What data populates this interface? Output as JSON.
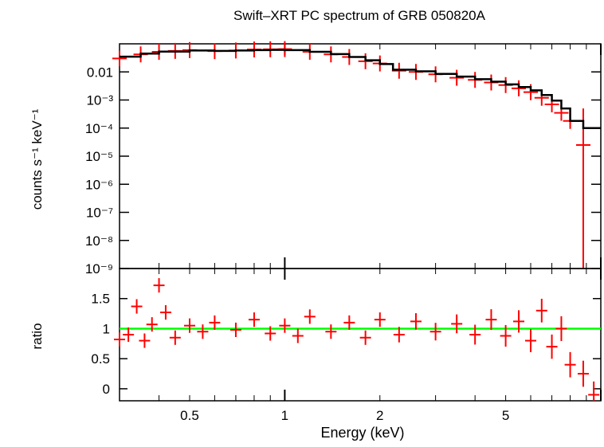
{
  "chart_data": [
    {
      "type": "scatter",
      "panel": "spectrum",
      "title": "Swift–XRT PC spectrum of GRB 050820A",
      "ylabel": "counts s⁻¹ keV⁻¹",
      "xlabel": "",
      "xscale": "log",
      "yscale": "log",
      "xlim": [
        0.3,
        10
      ],
      "ylim": [
        1e-09,
        0.1
      ],
      "y_tick_labels": [
        "0.01",
        "10⁻³",
        "10⁻⁴",
        "10⁻⁵",
        "10⁻⁶",
        "10⁻⁷",
        "10⁻⁸",
        "10⁻⁹"
      ],
      "y_tick_values": [
        0.01,
        0.001,
        0.0001,
        1e-05,
        1e-06,
        1e-07,
        1e-08,
        1e-09
      ],
      "series": [
        {
          "style": "data points with error bars",
          "color": "#ff0000",
          "points": [
            {
              "x": 0.3,
              "y": 0.03
            },
            {
              "x": 0.35,
              "y": 0.042
            },
            {
              "x": 0.4,
              "y": 0.052
            },
            {
              "x": 0.45,
              "y": 0.056
            },
            {
              "x": 0.5,
              "y": 0.06
            },
            {
              "x": 0.6,
              "y": 0.055
            },
            {
              "x": 0.7,
              "y": 0.058
            },
            {
              "x": 0.8,
              "y": 0.063
            },
            {
              "x": 0.9,
              "y": 0.064
            },
            {
              "x": 1.0,
              "y": 0.065
            },
            {
              "x": 1.2,
              "y": 0.052
            },
            {
              "x": 1.4,
              "y": 0.042
            },
            {
              "x": 1.6,
              "y": 0.034
            },
            {
              "x": 1.8,
              "y": 0.024
            },
            {
              "x": 2.0,
              "y": 0.02
            },
            {
              "x": 2.3,
              "y": 0.011
            },
            {
              "x": 2.6,
              "y": 0.01
            },
            {
              "x": 3.0,
              "y": 0.0082
            },
            {
              "x": 3.5,
              "y": 0.0062
            },
            {
              "x": 4.0,
              "y": 0.0052
            },
            {
              "x": 4.5,
              "y": 0.0042
            },
            {
              "x": 5.0,
              "y": 0.0034
            },
            {
              "x": 5.5,
              "y": 0.0026
            },
            {
              "x": 6.0,
              "y": 0.0019
            },
            {
              "x": 6.5,
              "y": 0.0012
            },
            {
              "x": 7.0,
              "y": 0.0007
            },
            {
              "x": 7.5,
              "y": 0.00035
            },
            {
              "x": 8.0,
              "y": 0.00018
            },
            {
              "x": 8.8,
              "y": 2.5e-05
            }
          ]
        },
        {
          "style": "model histogram",
          "color": "#000000",
          "points": [
            {
              "x": 0.3,
              "y": 0.035
            },
            {
              "x": 0.35,
              "y": 0.045
            },
            {
              "x": 0.4,
              "y": 0.053
            },
            {
              "x": 0.5,
              "y": 0.058
            },
            {
              "x": 0.6,
              "y": 0.056
            },
            {
              "x": 0.7,
              "y": 0.058
            },
            {
              "x": 0.8,
              "y": 0.06
            },
            {
              "x": 0.9,
              "y": 0.061
            },
            {
              "x": 1.0,
              "y": 0.06
            },
            {
              "x": 1.2,
              "y": 0.052
            },
            {
              "x": 1.4,
              "y": 0.043
            },
            {
              "x": 1.6,
              "y": 0.034
            },
            {
              "x": 1.8,
              "y": 0.026
            },
            {
              "x": 2.0,
              "y": 0.019
            },
            {
              "x": 2.2,
              "y": 0.012
            },
            {
              "x": 2.6,
              "y": 0.0105
            },
            {
              "x": 3.0,
              "y": 0.0085
            },
            {
              "x": 3.5,
              "y": 0.0068
            },
            {
              "x": 4.0,
              "y": 0.0055
            },
            {
              "x": 4.5,
              "y": 0.0045
            },
            {
              "x": 5.0,
              "y": 0.0036
            },
            {
              "x": 5.5,
              "y": 0.0029
            },
            {
              "x": 6.0,
              "y": 0.0022
            },
            {
              "x": 6.5,
              "y": 0.0015
            },
            {
              "x": 7.0,
              "y": 0.00095
            },
            {
              "x": 7.5,
              "y": 0.0005
            },
            {
              "x": 8.0,
              "y": 0.00018
            },
            {
              "x": 8.8,
              "y": 0.0001
            },
            {
              "x": 10.0,
              "y": 0.0001
            }
          ]
        }
      ]
    },
    {
      "type": "scatter",
      "panel": "ratio",
      "ylabel": "ratio",
      "xlabel": "Energy (keV)",
      "xscale": "log",
      "xlim": [
        0.3,
        10
      ],
      "ylim": [
        -0.2,
        2.0
      ],
      "x_tick_labels": [
        "0.5",
        "1",
        "2",
        "5"
      ],
      "x_tick_values": [
        0.5,
        1,
        2,
        5
      ],
      "y_tick_labels": [
        "0",
        "0.5",
        "1",
        "1.5"
      ],
      "y_tick_values": [
        0,
        0.5,
        1,
        1.5
      ],
      "reference_line": {
        "y": 1.0,
        "color": "#00ff00"
      },
      "series": [
        {
          "style": "data points with error bars",
          "color": "#ff0000",
          "points": [
            {
              "x": 0.3,
              "y": 0.82
            },
            {
              "x": 0.32,
              "y": 0.9
            },
            {
              "x": 0.34,
              "y": 1.37
            },
            {
              "x": 0.36,
              "y": 0.8
            },
            {
              "x": 0.38,
              "y": 1.07
            },
            {
              "x": 0.4,
              "y": 1.72
            },
            {
              "x": 0.42,
              "y": 1.27
            },
            {
              "x": 0.45,
              "y": 0.85
            },
            {
              "x": 0.5,
              "y": 1.05
            },
            {
              "x": 0.55,
              "y": 0.95
            },
            {
              "x": 0.6,
              "y": 1.1
            },
            {
              "x": 0.7,
              "y": 0.98
            },
            {
              "x": 0.8,
              "y": 1.15
            },
            {
              "x": 0.9,
              "y": 0.92
            },
            {
              "x": 1.0,
              "y": 1.05
            },
            {
              "x": 1.1,
              "y": 0.88
            },
            {
              "x": 1.2,
              "y": 1.2
            },
            {
              "x": 1.4,
              "y": 0.95
            },
            {
              "x": 1.6,
              "y": 1.1
            },
            {
              "x": 1.8,
              "y": 0.85
            },
            {
              "x": 2.0,
              "y": 1.15
            },
            {
              "x": 2.3,
              "y": 0.9
            },
            {
              "x": 2.6,
              "y": 1.12
            },
            {
              "x": 3.0,
              "y": 0.95
            },
            {
              "x": 3.5,
              "y": 1.08
            },
            {
              "x": 4.0,
              "y": 0.9
            },
            {
              "x": 4.5,
              "y": 1.15
            },
            {
              "x": 5.0,
              "y": 0.88
            },
            {
              "x": 5.5,
              "y": 1.12
            },
            {
              "x": 6.0,
              "y": 0.8
            },
            {
              "x": 6.5,
              "y": 1.3
            },
            {
              "x": 7.0,
              "y": 0.7
            },
            {
              "x": 7.5,
              "y": 1.0
            },
            {
              "x": 8.0,
              "y": 0.4
            },
            {
              "x": 8.8,
              "y": 0.25
            },
            {
              "x": 9.5,
              "y": -0.1
            }
          ]
        }
      ]
    }
  ]
}
